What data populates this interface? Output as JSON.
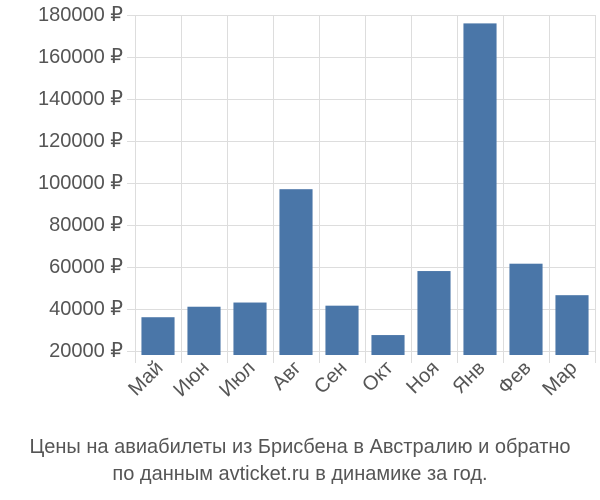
{
  "chart_data": {
    "type": "bar",
    "categories": [
      "Май",
      "Июн",
      "Июл",
      "Авг",
      "Сен",
      "Окт",
      "Ноя",
      "Янв",
      "Фев",
      "Мар"
    ],
    "values": [
      36000,
      41000,
      43000,
      97000,
      41500,
      27500,
      58000,
      176000,
      61500,
      46500
    ],
    "ylim": [
      18000,
      180000
    ],
    "yticks": [
      20000,
      40000,
      60000,
      80000,
      100000,
      120000,
      140000,
      160000,
      180000
    ],
    "ytick_labels": [
      "20000 ₽",
      "40000 ₽",
      "60000 ₽",
      "80000 ₽",
      "100000 ₽",
      "120000 ₽",
      "140000 ₽",
      "160000 ₽",
      "180000 ₽"
    ],
    "xlabel": "",
    "ylabel": "",
    "grid": true,
    "bar_color": "#4a76a8",
    "grid_color": "#dddddd"
  },
  "caption": {
    "line1": "Цены на авиабилеты из Брисбена в Австралию и обратно",
    "line2": "по данным avticket.ru в динамике за год."
  }
}
